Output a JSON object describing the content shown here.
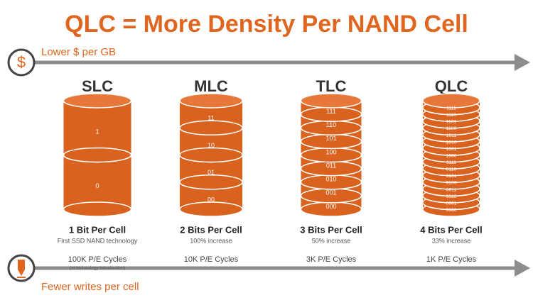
{
  "title": "QLC = More Density Per NAND Cell",
  "top_arrow": {
    "icon": "$",
    "label": "Lower $ per GB"
  },
  "bottom_arrow": {
    "label": "Fewer writes per cell"
  },
  "columns": [
    {
      "name": "SLC",
      "bits": [
        "1",
        "0"
      ],
      "caption": "1 Bit Per Cell",
      "subcaption": "First SSD NAND technology",
      "cycles": "100K P/E Cycles",
      "note": "(at technology introduction)"
    },
    {
      "name": "MLC",
      "bits": [
        "11",
        "10",
        "01",
        "00"
      ],
      "caption": "2 Bits Per Cell",
      "subcaption": "100% increase",
      "cycles": "10K P/E Cycles"
    },
    {
      "name": "TLC",
      "bits": [
        "111",
        "110",
        "101",
        "100",
        "011",
        "010",
        "001",
        "000"
      ],
      "caption": "3 Bits Per Cell",
      "subcaption": "50% increase",
      "cycles": "3K P/E Cycles"
    },
    {
      "name": "QLC",
      "bits": [
        "1111",
        "1110",
        "1101",
        "1100",
        "1011",
        "1010",
        "1001",
        "1000",
        "0111",
        "0110",
        "0101",
        "0100",
        "0011",
        "0010",
        "0001",
        "0000"
      ],
      "caption": "4 Bits Per Cell",
      "subcaption": "33% increase",
      "cycles": "1K P/E Cycles"
    }
  ]
}
